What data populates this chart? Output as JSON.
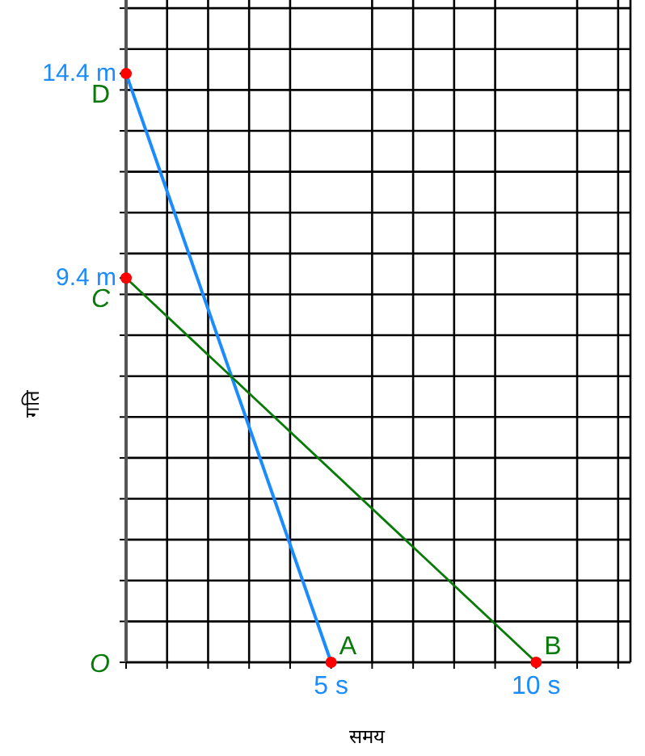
{
  "chart_data": {
    "type": "line",
    "xlabel": "समय",
    "ylabel": "गति",
    "xlim": [
      0,
      12.3
    ],
    "ylim": [
      0,
      16.2
    ],
    "xticks": [
      {
        "value": 0,
        "label": null
      },
      {
        "value": 1,
        "label": null
      },
      {
        "value": 2,
        "label": null
      },
      {
        "value": 3,
        "label": null
      },
      {
        "value": 4,
        "label": null
      },
      {
        "value": 5,
        "label": "5 s"
      },
      {
        "value": 6,
        "label": null
      },
      {
        "value": 7,
        "label": null
      },
      {
        "value": 8,
        "label": null
      },
      {
        "value": 9,
        "label": null
      },
      {
        "value": 10,
        "label": "10 s"
      },
      {
        "value": 11,
        "label": null
      },
      {
        "value": 12,
        "label": null
      }
    ],
    "yticks": [
      {
        "value": 0,
        "label": null
      },
      {
        "value": 1,
        "label": null
      },
      {
        "value": 2,
        "label": null
      },
      {
        "value": 3,
        "label": null
      },
      {
        "value": 4,
        "label": null
      },
      {
        "value": 5,
        "label": null
      },
      {
        "value": 6,
        "label": null
      },
      {
        "value": 7,
        "label": null
      },
      {
        "value": 8,
        "label": null
      },
      {
        "value": 9,
        "label": null
      },
      {
        "value": 9.4,
        "label": "9.4 m"
      },
      {
        "value": 10,
        "label": null
      },
      {
        "value": 11,
        "label": null
      },
      {
        "value": 12,
        "label": null
      },
      {
        "value": 13,
        "label": null
      },
      {
        "value": 14,
        "label": null
      },
      {
        "value": 14.4,
        "label": "14.4 m"
      },
      {
        "value": 15,
        "label": null
      },
      {
        "value": 16,
        "label": null
      }
    ],
    "grid": true,
    "series": [
      {
        "color": "#1a8cff",
        "x": [
          0,
          5
        ],
        "values": [
          14.4,
          0
        ]
      },
      {
        "color": "#087a08",
        "x": [
          0,
          10
        ],
        "values": [
          9.4,
          0
        ]
      },
      {
        "type": "scatter",
        "color": "#ff0000",
        "x": [
          0,
          5,
          0,
          10
        ],
        "values": [
          14.4,
          0,
          9.4,
          0
        ],
        "marker": "circle"
      }
    ],
    "annotations": [
      {
        "text": "D",
        "x": 0,
        "y": 14.4
      },
      {
        "text": "C",
        "x": 0,
        "y": 9.4
      },
      "O",
      {
        "text": "A",
        "x": 5,
        "y": 0
      },
      {
        "text": "B",
        "x": 10,
        "y": 0
      }
    ]
  }
}
